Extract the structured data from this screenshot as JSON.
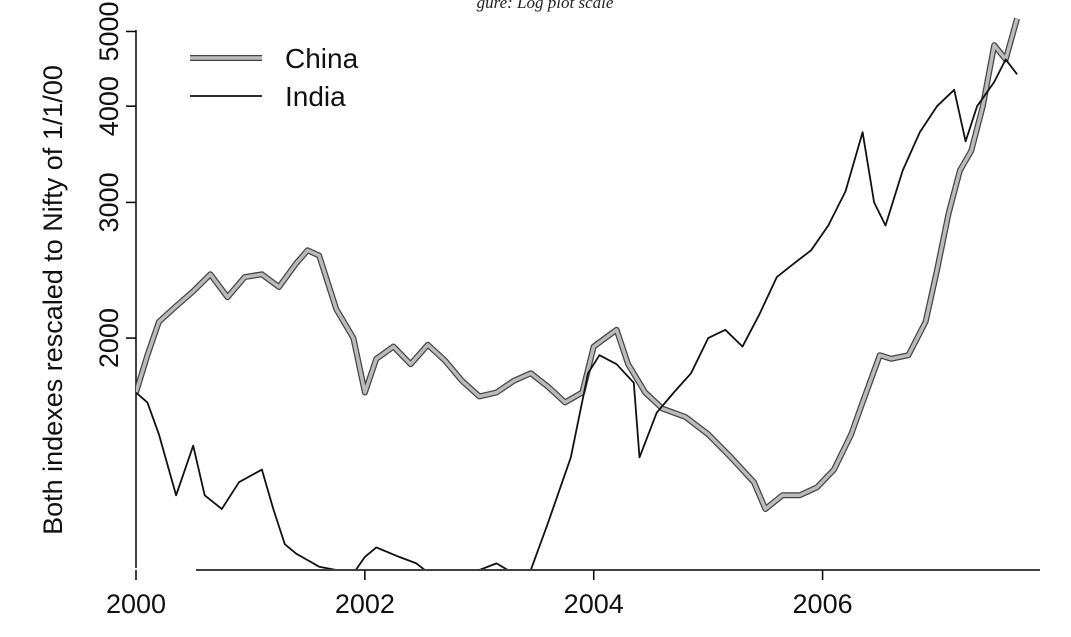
{
  "chart_data": {
    "type": "line",
    "title": "gure: Log plot scale",
    "xlabel": "",
    "ylabel": "Both indexes rescaled to Nifty of 1/1/00",
    "xlim": [
      2000,
      2007.9
    ],
    "ylim": [
      1000,
      5300
    ],
    "x_ticks": [
      2000,
      2002,
      2004,
      2006
    ],
    "x_tick_labels": [
      "2000",
      "2002",
      "2004",
      "2006"
    ],
    "y_ticks": [
      2000,
      3000,
      4000,
      5000
    ],
    "y_tick_labels": [
      "2000",
      "3000",
      "4000",
      "5000"
    ],
    "log_scale_y": true,
    "grid": false,
    "legend_position": "top-left",
    "series": [
      {
        "name": "China",
        "color": "#bbbbbb",
        "x": [
          2000.0,
          2000.1,
          2000.2,
          2000.35,
          2000.5,
          2000.65,
          2000.8,
          2000.95,
          2001.1,
          2001.25,
          2001.4,
          2001.5,
          2001.6,
          2001.75,
          2001.9,
          2002.0,
          2002.1,
          2002.25,
          2002.4,
          2002.55,
          2002.7,
          2002.85,
          2003.0,
          2003.15,
          2003.3,
          2003.45,
          2003.6,
          2003.75,
          2003.9,
          2004.0,
          2004.1,
          2004.2,
          2004.3,
          2004.45,
          2004.6,
          2004.8,
          2005.0,
          2005.2,
          2005.4,
          2005.5,
          2005.65,
          2005.8,
          2005.95,
          2006.1,
          2006.25,
          2006.35,
          2006.5,
          2006.6,
          2006.75,
          2006.9,
          2007.0,
          2007.1,
          2007.2,
          2007.3,
          2007.4,
          2007.5,
          2007.6,
          2007.7
        ],
        "values": [
          1700,
          1900,
          2100,
          2200,
          2300,
          2420,
          2260,
          2400,
          2420,
          2330,
          2500,
          2600,
          2560,
          2180,
          2000,
          1700,
          1880,
          1950,
          1850,
          1960,
          1870,
          1760,
          1680,
          1700,
          1760,
          1800,
          1730,
          1650,
          1700,
          1950,
          2000,
          2050,
          1850,
          1700,
          1620,
          1580,
          1500,
          1400,
          1300,
          1200,
          1250,
          1250,
          1280,
          1350,
          1500,
          1650,
          1900,
          1880,
          1900,
          2100,
          2450,
          2900,
          3300,
          3500,
          4000,
          4800,
          4600,
          5200
        ]
      },
      {
        "name": "India",
        "color": "#111111",
        "x": [
          2000.0,
          2000.1,
          2000.2,
          2000.35,
          2000.5,
          2000.6,
          2000.75,
          2000.9,
          2001.1,
          2001.2,
          2001.3,
          2001.4,
          2001.5,
          2001.6,
          2001.75,
          2001.9,
          2002.0,
          2002.1,
          2002.3,
          2002.45,
          2002.6,
          2002.75,
          2002.9,
          2003.0,
          2003.15,
          2003.3,
          2003.45,
          2003.6,
          2003.8,
          2003.95,
          2004.05,
          2004.2,
          2004.35,
          2004.4,
          2004.55,
          2004.7,
          2004.85,
          2005.0,
          2005.15,
          2005.3,
          2005.45,
          2005.6,
          2005.75,
          2005.9,
          2006.05,
          2006.2,
          2006.35,
          2006.45,
          2006.55,
          2006.7,
          2006.85,
          2007.0,
          2007.15,
          2007.25,
          2007.35,
          2007.5,
          2007.6,
          2007.7
        ],
        "values": [
          1700,
          1650,
          1500,
          1250,
          1450,
          1250,
          1200,
          1300,
          1350,
          1200,
          1080,
          1050,
          1030,
          1010,
          1000,
          990,
          1040,
          1070,
          1040,
          1020,
          980,
          960,
          970,
          1000,
          1020,
          990,
          1000,
          1150,
          1400,
          1800,
          1900,
          1850,
          1750,
          1400,
          1600,
          1700,
          1800,
          2000,
          2050,
          1950,
          2150,
          2400,
          2500,
          2600,
          2800,
          3100,
          3700,
          3000,
          2800,
          3300,
          3700,
          4000,
          4200,
          3600,
          4000,
          4300,
          4600,
          4400
        ]
      }
    ]
  }
}
